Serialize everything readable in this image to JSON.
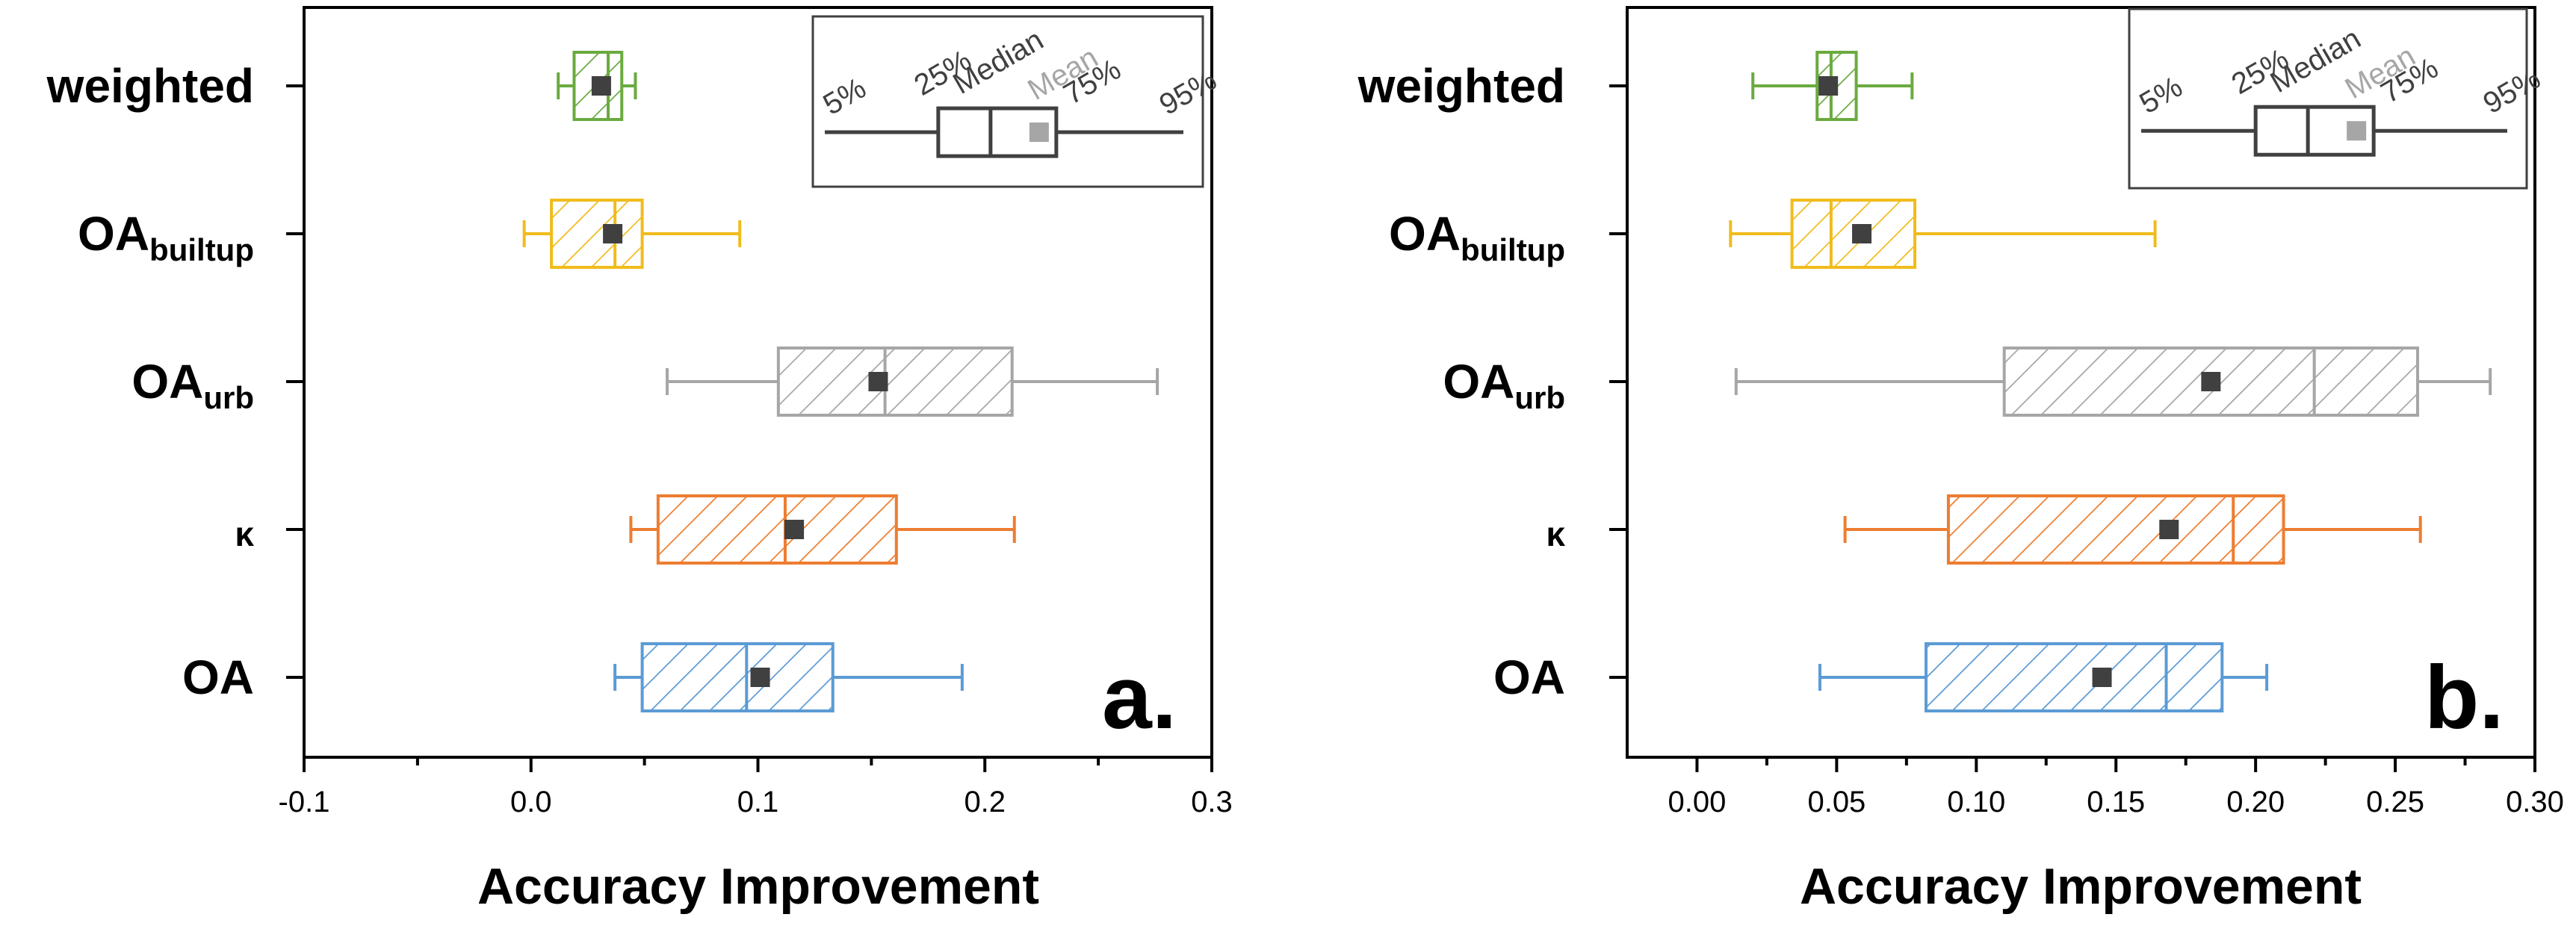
{
  "chart_data": [
    {
      "type": "boxplot",
      "panel_label": "a.",
      "xlabel": "Accuracy Improvement",
      "ylabel": "",
      "xlim": [
        -0.1,
        0.3
      ],
      "xticks": [
        -0.1,
        0.0,
        0.1,
        0.2,
        0.3
      ],
      "xtick_labels": [
        "-0.1",
        "0.0",
        "0.1",
        "0.2",
        "0.3"
      ],
      "categories": [
        {
          "main": "weighted",
          "sub": ""
        },
        {
          "main": "OA",
          "sub": "builtup"
        },
        {
          "main": "OA",
          "sub": "urb"
        },
        {
          "main": "κ",
          "sub": ""
        },
        {
          "main": "OA",
          "sub": ""
        }
      ],
      "series": [
        {
          "name": "weighted",
          "color": "#6aaa3f",
          "p5": 0.012,
          "q1": 0.019,
          "median": 0.034,
          "mean": 0.031,
          "q3": 0.04,
          "p95": 0.046
        },
        {
          "name": "OA_builtup",
          "color": "#f0bc1c",
          "p5": -0.003,
          "q1": 0.009,
          "median": 0.037,
          "mean": 0.036,
          "q3": 0.049,
          "p95": 0.092
        },
        {
          "name": "OA_urb",
          "color": "#a6a6a6",
          "p5": 0.06,
          "q1": 0.109,
          "median": 0.156,
          "mean": 0.153,
          "q3": 0.212,
          "p95": 0.276
        },
        {
          "name": "κ",
          "color": "#ed7d31",
          "p5": 0.044,
          "q1": 0.056,
          "median": 0.112,
          "mean": 0.116,
          "q3": 0.161,
          "p95": 0.213
        },
        {
          "name": "OA",
          "color": "#5b9bd5",
          "p5": 0.037,
          "q1": 0.049,
          "median": 0.095,
          "mean": 0.101,
          "q3": 0.133,
          "p95": 0.19
        }
      ]
    },
    {
      "type": "boxplot",
      "panel_label": "b.",
      "xlabel": "Accuracy Improvement",
      "ylabel": "",
      "xlim": [
        -0.025,
        0.3
      ],
      "xticks": [
        0.0,
        0.05,
        0.1,
        0.15,
        0.2,
        0.25,
        0.3
      ],
      "xtick_labels": [
        "0.00",
        "0.05",
        "0.10",
        "0.15",
        "0.20",
        "0.25",
        "0.30"
      ],
      "categories": [
        {
          "main": "weighted",
          "sub": ""
        },
        {
          "main": "OA",
          "sub": "builtup"
        },
        {
          "main": "OA",
          "sub": "urb"
        },
        {
          "main": "κ",
          "sub": ""
        },
        {
          "main": "OA",
          "sub": ""
        }
      ],
      "series": [
        {
          "name": "weighted",
          "color": "#6aaa3f",
          "p5": 0.02,
          "q1": 0.043,
          "median": 0.048,
          "mean": 0.047,
          "q3": 0.057,
          "p95": 0.077
        },
        {
          "name": "OA_builtup",
          "color": "#f0bc1c",
          "p5": 0.012,
          "q1": 0.034,
          "median": 0.048,
          "mean": 0.059,
          "q3": 0.078,
          "p95": 0.164
        },
        {
          "name": "OA_urb",
          "color": "#a6a6a6",
          "p5": 0.014,
          "q1": 0.11,
          "median": 0.221,
          "mean": 0.184,
          "q3": 0.258,
          "p95": 0.284
        },
        {
          "name": "κ",
          "color": "#ed7d31",
          "p5": 0.053,
          "q1": 0.09,
          "median": 0.192,
          "mean": 0.169,
          "q3": 0.21,
          "p95": 0.259
        },
        {
          "name": "OA",
          "color": "#5b9bd5",
          "p5": 0.044,
          "q1": 0.082,
          "median": 0.168,
          "mean": 0.145,
          "q3": 0.188,
          "p95": 0.204
        }
      ]
    }
  ],
  "legend": {
    "labels": [
      "5%",
      "25%",
      "Median",
      "Mean",
      "75%",
      "95%"
    ],
    "box_color": "#404040",
    "mean_color": "#a6a6a6"
  },
  "colors": {
    "axis": "#000000",
    "mean_marker": "#404040"
  }
}
